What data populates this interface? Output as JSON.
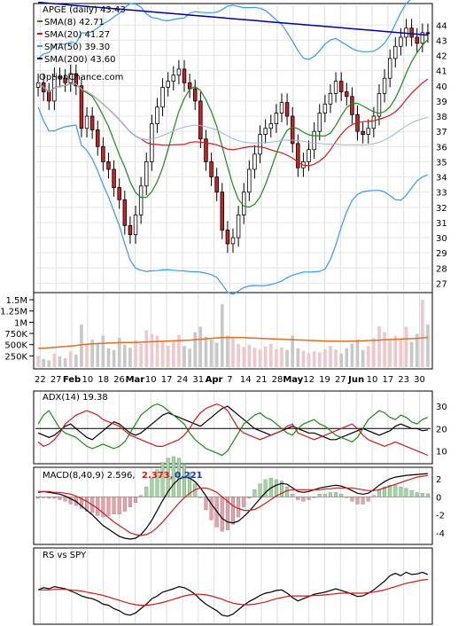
{
  "chart_data": [
    {
      "type": "candlestick",
      "panel": "price",
      "legend": [
        {
          "label": "APGE (daily) 43.43",
          "color": "#000000"
        },
        {
          "label": "SMA(8) 42.71",
          "color": "#1a8a1a"
        },
        {
          "label": "SMA(20) 41.27",
          "color": "#d11a1a"
        },
        {
          "label": "SMA(50) 39.30",
          "color": "#3399ff"
        },
        {
          "label": "SMA(200) 43.60",
          "color": "#0000a0"
        }
      ],
      "watermark": "OptionChance.com",
      "y_ticks": [
        44,
        43,
        42,
        41,
        40,
        39,
        38,
        37,
        36,
        35,
        34,
        33,
        32,
        31,
        30,
        29,
        28,
        27
      ],
      "ylim": [
        26.5,
        45.3
      ],
      "x_ticks": [
        "22",
        "27",
        "Feb",
        "10",
        "18",
        "26",
        "Mar",
        "10",
        "17",
        "24",
        "31",
        "Apr",
        "7",
        "14",
        "21",
        "28",
        "May",
        "12",
        "19",
        "27",
        "Jun",
        "10",
        "17",
        "23",
        "30"
      ],
      "close": [
        40.2,
        39.6,
        39.0,
        40.6,
        40.5,
        40.2,
        40.8,
        40.0,
        37.2,
        38.0,
        37.1,
        36.0,
        35.0,
        34.5,
        33.3,
        32.5,
        30.8,
        30.2,
        31.5,
        33.4,
        35.0,
        37.5,
        38.6,
        39.9,
        40.3,
        40.7,
        41.1,
        40.2,
        39.8,
        39.0,
        36.5,
        35.0,
        34.0,
        33.0,
        30.5,
        29.6,
        30.0,
        31.5,
        33.0,
        34.5,
        35.5,
        36.8,
        37.2,
        37.5,
        38.2,
        38.9,
        38.0,
        36.2,
        34.6,
        35.0,
        35.8,
        37.0,
        38.2,
        38.8,
        39.5,
        40.3,
        39.6,
        39.3,
        38.1,
        37.0,
        36.8,
        37.2,
        38.0,
        39.5,
        40.5,
        41.8,
        42.6,
        43.2,
        43.8,
        43.2,
        42.8,
        43.5,
        43.43
      ]
    },
    {
      "type": "bar",
      "panel": "volume",
      "y_ticks": [
        "1.5M",
        "1.25M",
        "1M",
        "750K",
        "500K",
        "250K"
      ],
      "ylim": [
        0,
        1600000
      ],
      "values": [
        250000,
        180000,
        150000,
        300000,
        240000,
        200000,
        350000,
        280000,
        950000,
        520000,
        610000,
        540000,
        700000,
        420000,
        380000,
        650000,
        500000,
        430000,
        600000,
        520000,
        820000,
        740000,
        700000,
        580000,
        480000,
        560000,
        720000,
        470000,
        410000,
        780000,
        900000,
        680000,
        610000,
        540000,
        1400000,
        700000,
        650000,
        520000,
        450000,
        500000,
        430000,
        390000,
        460000,
        520000,
        400000,
        440000,
        380000,
        700000,
        420000,
        360000,
        310000,
        350000,
        330000,
        400000,
        470000,
        390000,
        300000,
        420000,
        520000,
        610000,
        380000,
        470000,
        650000,
        910000,
        780000,
        600000,
        700000,
        620000,
        900000,
        560000,
        740000,
        1500000,
        950000
      ],
      "avg_line": [
        420000,
        420000,
        430000,
        440000,
        450000,
        460000,
        470000,
        480000,
        500000,
        510000,
        520000,
        525000,
        530000,
        535000,
        540000,
        545000,
        548000,
        550000,
        552000,
        555000,
        560000,
        565000,
        570000,
        575000,
        580000,
        585000,
        590000,
        595000,
        600000,
        610000,
        620000,
        630000,
        640000,
        650000,
        655000,
        660000,
        662000,
        660000,
        655000,
        650000,
        645000,
        640000,
        635000,
        630000,
        625000,
        620000,
        615000,
        610000,
        605000,
        600000,
        595000,
        590000,
        585000,
        580000,
        578000,
        576000,
        575000,
        575000,
        576000,
        580000,
        585000,
        590000,
        595000,
        600000,
        610000,
        615000,
        620000,
        625000,
        630000,
        635000,
        640000,
        650000,
        660000
      ]
    },
    {
      "type": "line",
      "panel": "adx",
      "label": "ADX(14) 19.38",
      "y_ticks": [
        30,
        20,
        10
      ],
      "ylim": [
        5,
        36
      ],
      "series": [
        {
          "name": "ADX",
          "color": "#000000",
          "values": [
            18,
            17,
            16,
            17,
            19,
            21,
            22,
            20,
            18,
            16,
            15,
            17,
            19,
            21,
            23,
            22,
            20,
            18,
            17,
            18,
            20,
            22,
            24,
            26,
            27,
            26,
            25,
            24,
            23,
            22,
            21,
            23,
            25,
            27,
            29,
            30,
            28,
            26,
            24,
            22,
            20,
            19,
            18,
            17,
            18,
            19,
            20,
            21,
            20,
            19,
            18,
            18,
            17,
            16,
            15,
            15,
            16,
            17,
            18,
            19,
            20,
            19,
            18,
            17,
            18,
            19,
            21,
            22,
            21,
            20,
            20,
            19,
            19.38
          ]
        },
        {
          "name": "+DI",
          "color": "#1a8a1a",
          "values": [
            22,
            26,
            28,
            24,
            20,
            18,
            17,
            16,
            14,
            12,
            11,
            12,
            13,
            12,
            11,
            12,
            14,
            18,
            22,
            26,
            28,
            30,
            31,
            30,
            28,
            26,
            24,
            22,
            18,
            15,
            13,
            11,
            10,
            9,
            8,
            10,
            14,
            18,
            22,
            24,
            26,
            27,
            25,
            24,
            22,
            20,
            18,
            17,
            20,
            22,
            23,
            24,
            22,
            21,
            19,
            17,
            16,
            15,
            14,
            16,
            20,
            24,
            26,
            28,
            27,
            25,
            24,
            26,
            25,
            23,
            22,
            24,
            25
          ]
        },
        {
          "name": "-DI",
          "color": "#d11a1a",
          "values": [
            14,
            12,
            13,
            15,
            18,
            22,
            24,
            26,
            27,
            28,
            27,
            26,
            24,
            23,
            22,
            21,
            19,
            17,
            16,
            15,
            14,
            13,
            12,
            12,
            13,
            14,
            15,
            17,
            20,
            24,
            27,
            29,
            30,
            31,
            30,
            28,
            24,
            20,
            18,
            17,
            16,
            15,
            16,
            17,
            18,
            19,
            21,
            22,
            18,
            17,
            16,
            15,
            16,
            17,
            18,
            19,
            20,
            21,
            22,
            20,
            17,
            15,
            14,
            13,
            12,
            13,
            14,
            13,
            12,
            11,
            10,
            9,
            8
          ]
        }
      ]
    },
    {
      "type": "line",
      "panel": "macd",
      "label": "MACD(8,40,9) 2.596,",
      "label_values": [
        {
          "text": "2.373,",
          "color": "#d11a1a"
        },
        {
          "text": "0.221",
          "color": "#1a3ab0"
        }
      ],
      "y_ticks": [
        2,
        0,
        -2,
        -4
      ],
      "ylim": [
        -5,
        3
      ],
      "series": [
        {
          "name": "MACD",
          "color": "#000000",
          "values": [
            0.5,
            0.6,
            0.5,
            0.4,
            0.3,
            0.1,
            -0.2,
            -0.5,
            -1.0,
            -1.5,
            -2.0,
            -2.6,
            -3.2,
            -3.6,
            -4.0,
            -4.4,
            -4.6,
            -4.7,
            -4.6,
            -4.2,
            -3.5,
            -2.6,
            -1.5,
            -0.4,
            0.6,
            1.4,
            2.0,
            2.2,
            2.1,
            1.7,
            1.0,
            0.1,
            -0.8,
            -1.6,
            -2.4,
            -2.8,
            -2.9,
            -2.7,
            -2.2,
            -1.6,
            -0.9,
            -0.2,
            0.5,
            1.0,
            1.3,
            1.5,
            1.4,
            1.0,
            0.6,
            0.5,
            0.6,
            0.8,
            1.0,
            1.1,
            1.2,
            1.3,
            1.2,
            1.0,
            0.7,
            0.4,
            0.3,
            0.4,
            0.8,
            1.3,
            1.7,
            2.0,
            2.2,
            2.3,
            2.4,
            2.45,
            2.5,
            2.55,
            2.596
          ]
        },
        {
          "name": "Signal",
          "color": "#d11a1a",
          "values": [
            0.6,
            0.6,
            0.6,
            0.5,
            0.5,
            0.4,
            0.3,
            0.1,
            -0.2,
            -0.5,
            -0.9,
            -1.3,
            -1.8,
            -2.3,
            -2.8,
            -3.2,
            -3.6,
            -4.0,
            -4.2,
            -4.3,
            -4.2,
            -3.9,
            -3.4,
            -2.8,
            -2.1,
            -1.4,
            -0.7,
            -0.1,
            0.4,
            0.8,
            1.0,
            1.0,
            0.8,
            0.5,
            0.0,
            -0.5,
            -1.0,
            -1.3,
            -1.5,
            -1.5,
            -1.4,
            -1.1,
            -0.7,
            -0.3,
            0.1,
            0.4,
            0.7,
            0.8,
            0.8,
            0.8,
            0.8,
            0.8,
            0.8,
            0.9,
            0.9,
            1.0,
            1.0,
            1.0,
            1.0,
            0.9,
            0.8,
            0.7,
            0.7,
            0.8,
            1.0,
            1.2,
            1.4,
            1.6,
            1.8,
            2.0,
            2.2,
            2.3,
            2.373
          ]
        }
      ]
    },
    {
      "type": "line",
      "panel": "rs",
      "label": "RS vs SPY",
      "series": [
        {
          "name": "RS",
          "color": "#000000",
          "values": [
            0.56,
            0.6,
            0.58,
            0.62,
            0.6,
            0.58,
            0.54,
            0.5,
            0.45,
            0.42,
            0.4,
            0.36,
            0.3,
            0.28,
            0.22,
            0.18,
            0.12,
            0.1,
            0.14,
            0.22,
            0.3,
            0.4,
            0.45,
            0.52,
            0.55,
            0.58,
            0.62,
            0.6,
            0.55,
            0.48,
            0.38,
            0.3,
            0.24,
            0.18,
            0.1,
            0.08,
            0.12,
            0.2,
            0.28,
            0.35,
            0.4,
            0.46,
            0.5,
            0.52,
            0.55,
            0.56,
            0.5,
            0.42,
            0.36,
            0.4,
            0.44,
            0.48,
            0.5,
            0.52,
            0.55,
            0.58,
            0.55,
            0.52,
            0.48,
            0.44,
            0.45,
            0.5,
            0.56,
            0.64,
            0.72,
            0.82,
            0.86,
            0.82,
            0.88,
            0.84,
            0.85,
            0.88,
            0.84
          ]
        },
        {
          "name": "RS-SMA",
          "color": "#d11a1a",
          "values": [
            0.56,
            0.56,
            0.56,
            0.57,
            0.57,
            0.57,
            0.56,
            0.55,
            0.54,
            0.52,
            0.5,
            0.48,
            0.46,
            0.43,
            0.4,
            0.37,
            0.34,
            0.31,
            0.29,
            0.28,
            0.28,
            0.29,
            0.31,
            0.33,
            0.36,
            0.39,
            0.42,
            0.45,
            0.47,
            0.48,
            0.48,
            0.47,
            0.45,
            0.42,
            0.39,
            0.35,
            0.32,
            0.3,
            0.29,
            0.29,
            0.3,
            0.32,
            0.34,
            0.37,
            0.4,
            0.42,
            0.44,
            0.45,
            0.45,
            0.45,
            0.45,
            0.46,
            0.46,
            0.47,
            0.48,
            0.49,
            0.5,
            0.5,
            0.5,
            0.5,
            0.5,
            0.51,
            0.52,
            0.54,
            0.56,
            0.59,
            0.62,
            0.65,
            0.68,
            0.7,
            0.72,
            0.74,
            0.75
          ]
        }
      ]
    }
  ]
}
